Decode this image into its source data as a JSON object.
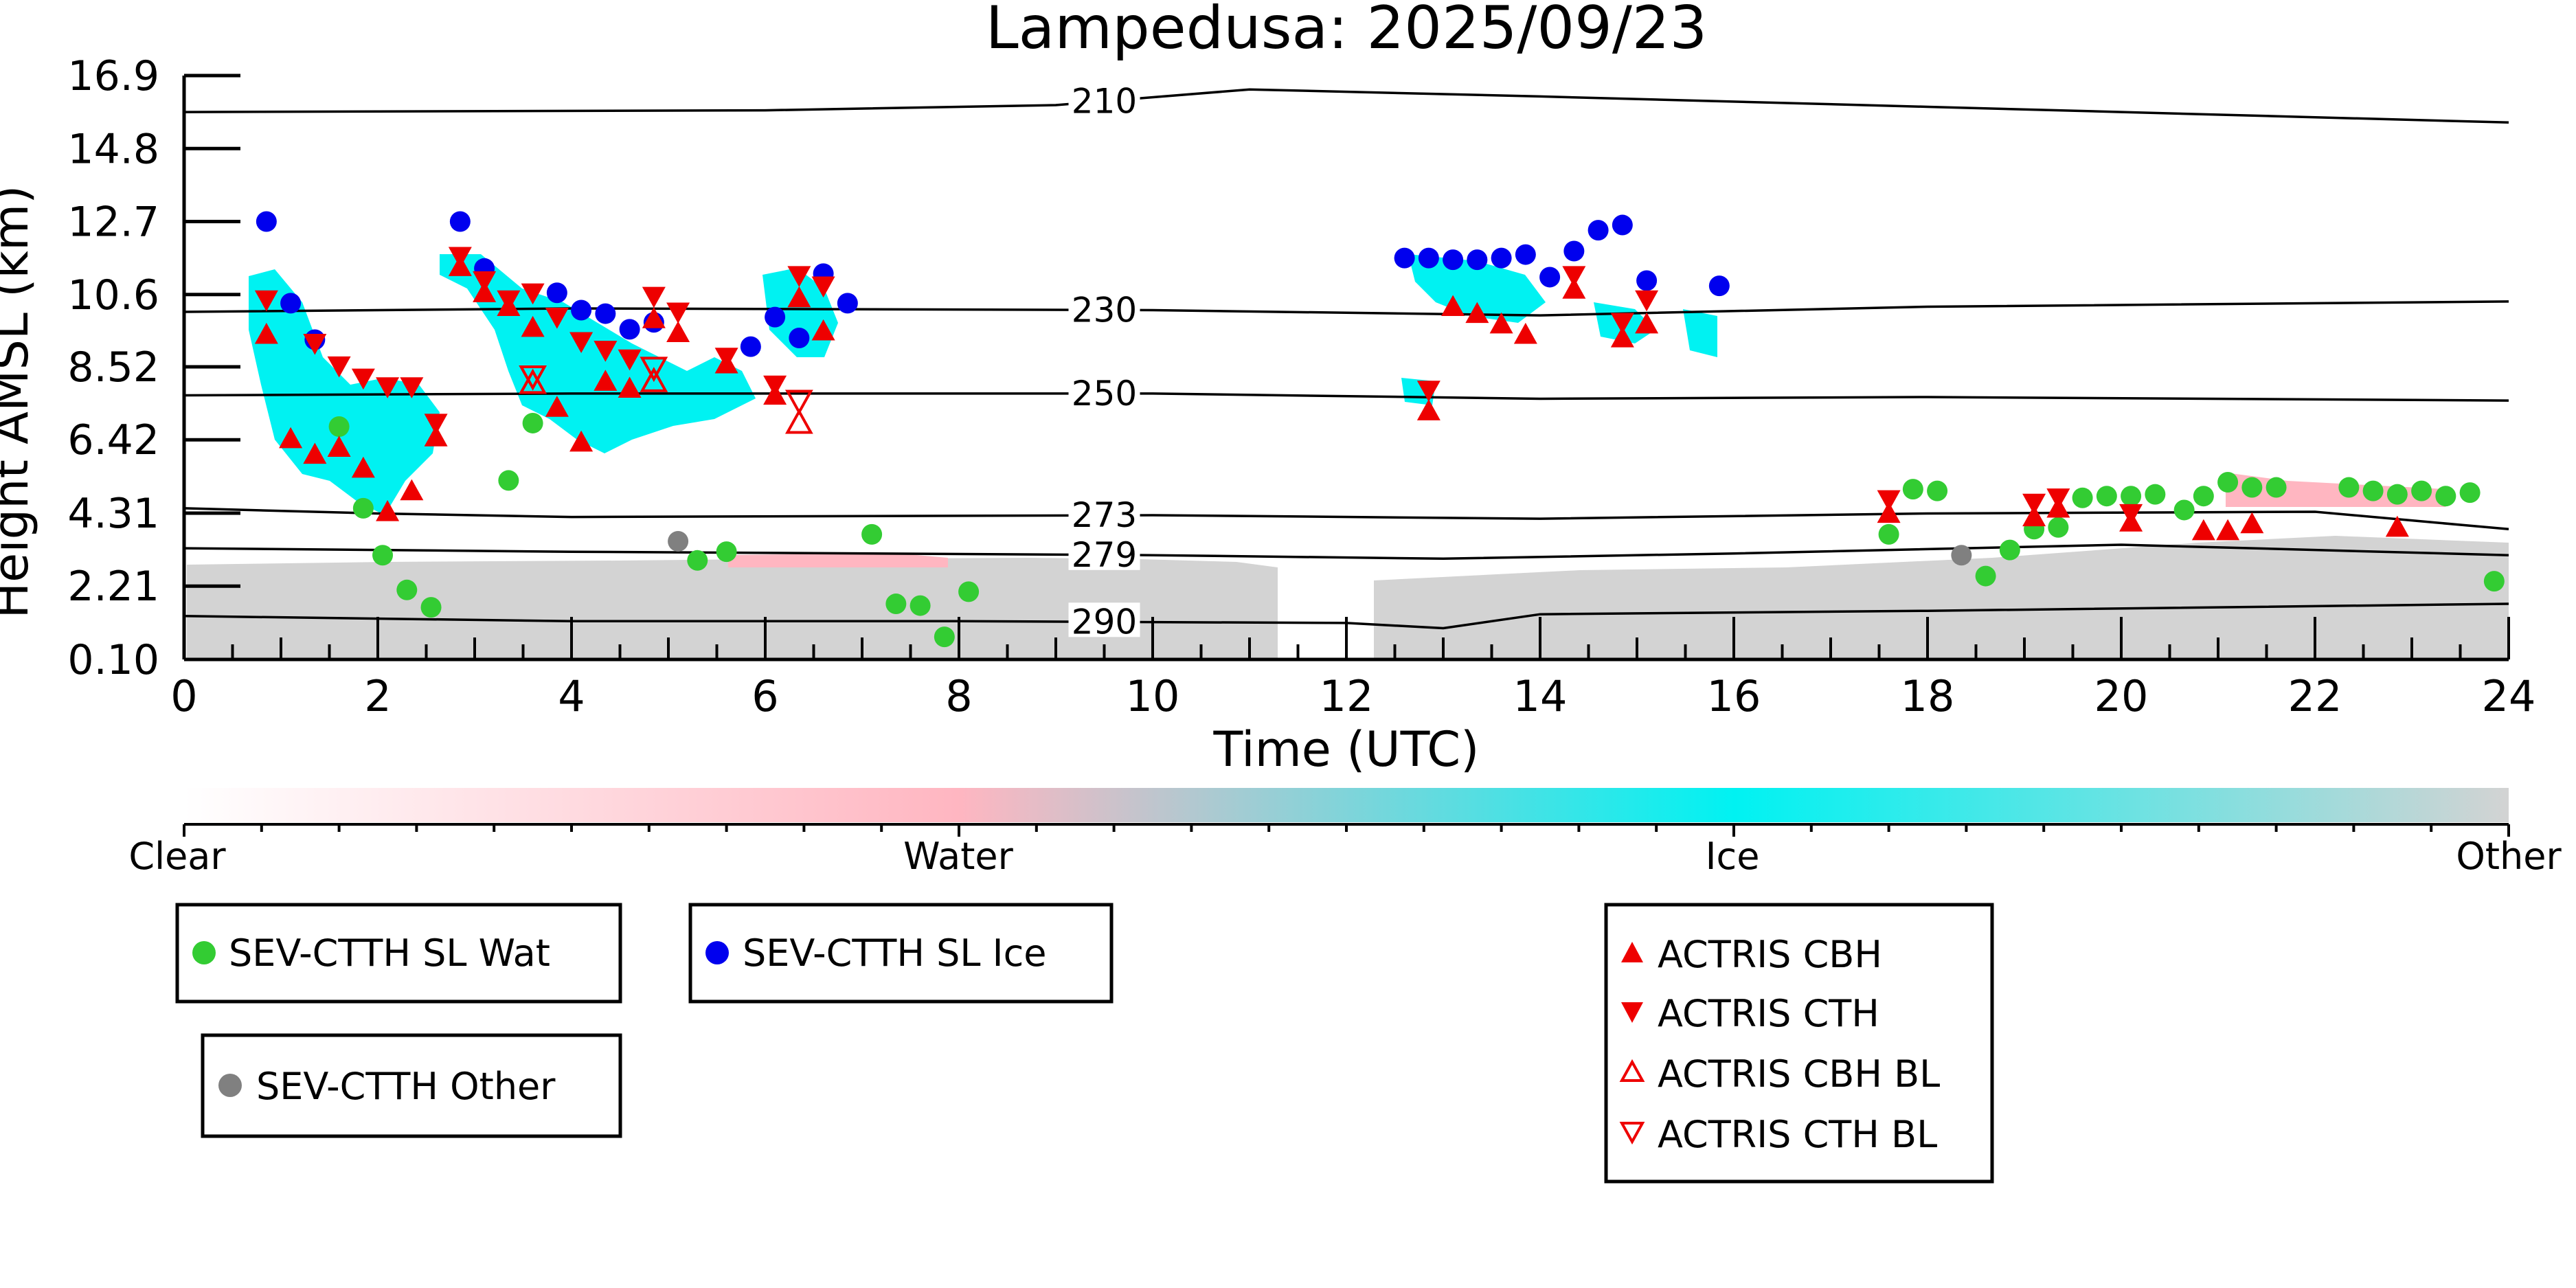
{
  "chart_data": {
    "type": "scatter",
    "title": "Lampedusa: 2025/09/23",
    "xlabel": "Time (UTC)",
    "ylabel": "Height AMSL (km)",
    "xlim": [
      0,
      24
    ],
    "xticks": [
      "0",
      "2",
      "4",
      "6",
      "8",
      "10",
      "12",
      "14",
      "16",
      "18",
      "20",
      "22",
      "24"
    ],
    "yticks": [
      "0.10",
      "2.21",
      "4.31",
      "6.42",
      "8.52",
      "10.6",
      "12.7",
      "14.8",
      "16.9"
    ],
    "ylim": [
      0.1,
      16.9
    ],
    "colors": {
      "water_point": "#33cc33",
      "ice_point": "#0000ee",
      "other_point": "#808080",
      "actris": "#ee0000",
      "ice_cloud": "#00f2f2",
      "other_cloud": "#d3d3d3",
      "water_cloud": "#ffb6c1"
    },
    "isotherms": [
      {
        "label": "210",
        "points": [
          [
            0,
            15.85
          ],
          [
            6,
            15.9
          ],
          [
            9,
            16.05
          ],
          [
            11,
            16.5
          ],
          [
            14,
            16.3
          ],
          [
            18,
            16.0
          ],
          [
            24,
            15.55
          ]
        ]
      },
      {
        "label": "230",
        "points": [
          [
            0,
            10.1
          ],
          [
            4,
            10.2
          ],
          [
            10,
            10.15
          ],
          [
            14,
            10.0
          ],
          [
            18,
            10.25
          ],
          [
            24,
            10.4
          ]
        ]
      },
      {
        "label": "250",
        "points": [
          [
            0,
            7.7
          ],
          [
            4,
            7.75
          ],
          [
            10,
            7.75
          ],
          [
            14,
            7.6
          ],
          [
            18,
            7.65
          ],
          [
            24,
            7.55
          ]
        ]
      },
      {
        "label": "273",
        "points": [
          [
            0,
            4.45
          ],
          [
            2,
            4.3
          ],
          [
            4,
            4.2
          ],
          [
            10,
            4.25
          ],
          [
            14,
            4.15
          ],
          [
            18,
            4.3
          ],
          [
            22,
            4.35
          ],
          [
            24,
            3.85
          ]
        ]
      },
      {
        "label": "279",
        "points": [
          [
            0,
            3.3
          ],
          [
            4,
            3.2
          ],
          [
            10,
            3.1
          ],
          [
            13,
            3.0
          ],
          [
            16,
            3.15
          ],
          [
            20,
            3.4
          ],
          [
            24,
            3.1
          ]
        ]
      },
      {
        "label": "290",
        "points": [
          [
            0,
            1.35
          ],
          [
            4,
            1.2
          ],
          [
            8,
            1.2
          ],
          [
            12,
            1.15
          ],
          [
            13,
            1.0
          ],
          [
            14,
            1.4
          ],
          [
            18,
            1.5
          ],
          [
            24,
            1.7
          ]
        ]
      }
    ],
    "sev_ctth_sl_wat": [
      [
        1.6,
        6.8
      ],
      [
        1.85,
        4.45
      ],
      [
        2.05,
        3.1
      ],
      [
        2.3,
        2.1
      ],
      [
        2.55,
        1.6
      ],
      [
        3.35,
        5.25
      ],
      [
        3.6,
        6.9
      ],
      [
        5.3,
        2.95
      ],
      [
        5.6,
        3.2
      ],
      [
        7.1,
        3.7
      ],
      [
        7.35,
        1.7
      ],
      [
        7.6,
        1.65
      ],
      [
        7.85,
        0.75
      ],
      [
        8.1,
        2.05
      ],
      [
        17.6,
        3.7
      ],
      [
        17.85,
        5.0
      ],
      [
        18.1,
        4.95
      ],
      [
        18.6,
        2.5
      ],
      [
        18.85,
        3.25
      ],
      [
        19.1,
        3.85
      ],
      [
        19.35,
        3.9
      ],
      [
        19.6,
        4.75
      ],
      [
        19.85,
        4.8
      ],
      [
        20.1,
        4.8
      ],
      [
        20.35,
        4.85
      ],
      [
        20.65,
        4.4
      ],
      [
        20.85,
        4.8
      ],
      [
        21.1,
        5.2
      ],
      [
        21.35,
        5.05
      ],
      [
        21.6,
        5.05
      ],
      [
        22.35,
        5.05
      ],
      [
        22.6,
        4.95
      ],
      [
        22.85,
        4.85
      ],
      [
        23.1,
        4.95
      ],
      [
        23.35,
        4.8
      ],
      [
        23.6,
        4.9
      ],
      [
        23.85,
        2.35
      ]
    ],
    "sev_ctth_sl_ice": [
      [
        0.85,
        12.7
      ],
      [
        1.1,
        10.35
      ],
      [
        1.35,
        9.3
      ],
      [
        2.85,
        12.7
      ],
      [
        3.1,
        11.35
      ],
      [
        3.85,
        10.65
      ],
      [
        4.1,
        10.15
      ],
      [
        4.35,
        10.05
      ],
      [
        4.6,
        9.6
      ],
      [
        4.85,
        9.8
      ],
      [
        5.85,
        9.1
      ],
      [
        6.1,
        9.95
      ],
      [
        6.35,
        9.35
      ],
      [
        6.6,
        11.2
      ],
      [
        6.85,
        10.35
      ],
      [
        12.6,
        11.65
      ],
      [
        12.85,
        11.65
      ],
      [
        13.1,
        11.6
      ],
      [
        13.35,
        11.6
      ],
      [
        13.6,
        11.65
      ],
      [
        13.85,
        11.75
      ],
      [
        14.1,
        11.1
      ],
      [
        14.35,
        11.85
      ],
      [
        14.6,
        12.45
      ],
      [
        14.85,
        12.6
      ],
      [
        15.1,
        11.0
      ],
      [
        15.85,
        10.85
      ]
    ],
    "sev_ctth_other": [
      [
        5.1,
        3.5
      ],
      [
        18.35,
        3.1
      ]
    ],
    "actris_cbh": [
      [
        0.85,
        9.45
      ],
      [
        1.1,
        6.45
      ],
      [
        1.35,
        6.0
      ],
      [
        1.6,
        6.2
      ],
      [
        1.85,
        5.6
      ],
      [
        2.1,
        4.35
      ],
      [
        2.35,
        4.95
      ],
      [
        2.6,
        6.5
      ],
      [
        2.85,
        11.4
      ],
      [
        3.1,
        10.65
      ],
      [
        3.35,
        10.25
      ],
      [
        3.6,
        9.65
      ],
      [
        3.85,
        7.35
      ],
      [
        4.1,
        6.35
      ],
      [
        4.35,
        8.1
      ],
      [
        4.6,
        7.9
      ],
      [
        4.85,
        9.9
      ],
      [
        5.1,
        9.5
      ],
      [
        5.6,
        8.6
      ],
      [
        6.1,
        7.7
      ],
      [
        6.35,
        10.5
      ],
      [
        6.6,
        9.55
      ],
      [
        12.85,
        7.25
      ],
      [
        13.1,
        10.25
      ],
      [
        13.35,
        10.05
      ],
      [
        13.6,
        9.75
      ],
      [
        13.85,
        9.45
      ],
      [
        14.35,
        10.75
      ],
      [
        14.85,
        9.35
      ],
      [
        15.1,
        9.75
      ],
      [
        17.6,
        4.3
      ],
      [
        19.1,
        4.2
      ],
      [
        19.35,
        4.45
      ],
      [
        20.1,
        4.05
      ],
      [
        20.85,
        3.8
      ],
      [
        21.1,
        3.8
      ],
      [
        21.35,
        4.0
      ],
      [
        22.85,
        3.9
      ]
    ],
    "actris_cth": [
      [
        0.85,
        10.45
      ],
      [
        1.35,
        9.2
      ],
      [
        1.6,
        8.55
      ],
      [
        1.85,
        8.2
      ],
      [
        2.1,
        7.95
      ],
      [
        2.35,
        7.95
      ],
      [
        2.6,
        6.9
      ],
      [
        2.85,
        11.7
      ],
      [
        3.1,
        11.0
      ],
      [
        3.35,
        10.45
      ],
      [
        3.6,
        10.65
      ],
      [
        3.85,
        9.95
      ],
      [
        4.1,
        9.25
      ],
      [
        4.35,
        9.0
      ],
      [
        4.6,
        8.75
      ],
      [
        4.85,
        10.55
      ],
      [
        5.1,
        10.1
      ],
      [
        5.6,
        8.8
      ],
      [
        6.1,
        8.0
      ],
      [
        6.35,
        11.15
      ],
      [
        6.6,
        10.85
      ],
      [
        12.85,
        7.85
      ],
      [
        14.35,
        11.15
      ],
      [
        14.85,
        9.8
      ],
      [
        15.1,
        10.45
      ],
      [
        17.6,
        4.7
      ],
      [
        19.1,
        4.6
      ],
      [
        19.35,
        4.75
      ],
      [
        20.1,
        4.3
      ]
    ],
    "actris_cbh_bl": [
      [
        3.6,
        8.05
      ],
      [
        4.85,
        8.1
      ],
      [
        6.35,
        6.9
      ]
    ],
    "actris_cth_bl": [
      [
        3.6,
        8.25
      ],
      [
        4.85,
        8.5
      ],
      [
        6.35,
        7.55
      ]
    ],
    "colorbar": {
      "labels": [
        "Clear",
        "Water",
        "Ice",
        "Other"
      ],
      "colors": [
        "#ffffff",
        "#ffb6c1",
        "#00f2f2",
        "#d3d3d3"
      ]
    },
    "legends": {
      "sev_wat": "SEV-CTTH SL Wat",
      "sev_ice": "SEV-CTTH SL Ice",
      "sev_other": "SEV-CTTH Other",
      "actris_cbh": "ACTRIS CBH",
      "actris_cth": "ACTRIS CTH",
      "actris_cbh_bl": "ACTRIS CBH BL",
      "actris_cth_bl": "ACTRIS CTH BL"
    }
  }
}
